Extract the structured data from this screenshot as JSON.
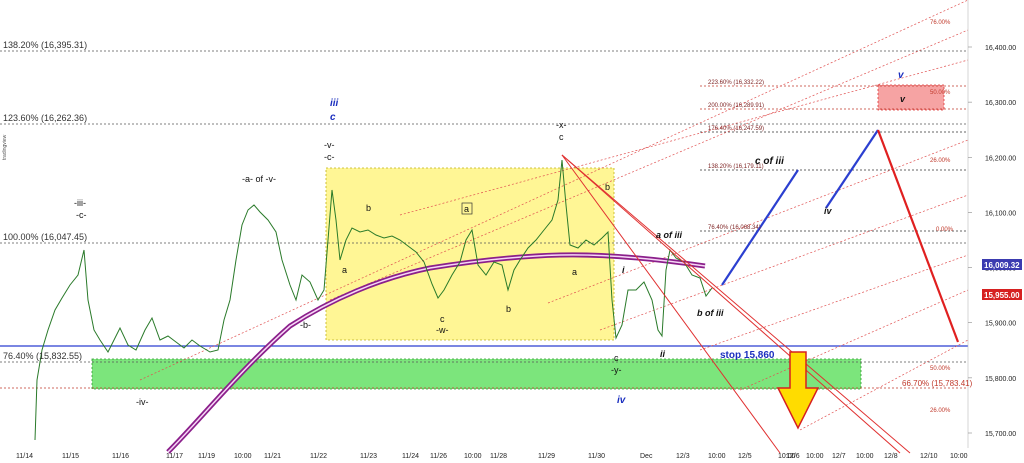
{
  "chart_data": {
    "type": "line",
    "instrument_type": "candlestick",
    "y_axis": {
      "position": "right",
      "ticks": [
        "16,400.00",
        "16,300.00",
        "16,200.00",
        "16,100.00",
        "16,000.00",
        "15,900.00",
        "15,800.00",
        "15,700.00"
      ],
      "tick_values": [
        16400,
        16300,
        16200,
        16100,
        16000,
        15900,
        15800,
        15700
      ],
      "ylim": [
        15650,
        16470
      ]
    },
    "x_axis": {
      "ticks": [
        "11/14",
        "11/15",
        "11/16",
        "11/17",
        "11/19",
        "10:00",
        "11/21",
        "11/22",
        "11/23",
        "11/24",
        "11/26",
        "10:00",
        "11/28",
        "11/29",
        "11/30",
        "Dec",
        "12/3",
        "10:00",
        "12/5",
        "10:00",
        "12/6",
        "10:00",
        "12/7",
        "10:00",
        "12/8",
        "12/10",
        "10:00"
      ]
    },
    "fib_levels_left": [
      {
        "label": "138.20% (16,395.31)",
        "value": 16395.31
      },
      {
        "label": "123.60% (16,262.36)",
        "value": 16262.36
      },
      {
        "label": "100.00% (16,047.45)",
        "value": 16047.45
      },
      {
        "label": "76.40% (15,832.55)",
        "value": 15832.55
      }
    ],
    "fib_levels_right": [
      {
        "label": "223.60% (16,332.22)",
        "value": 16332.22
      },
      {
        "label": "200.00% (16,289.91)",
        "value": 16289.91
      },
      {
        "label": "176.40% (16,247.59)",
        "value": 16247.59
      },
      {
        "label": "138.20% (16,179.11)",
        "value": 16179.11
      },
      {
        "label": "76.40% (16,068.34)",
        "value": 16068.34
      },
      {
        "label": "66.70% (15,783.41)",
        "value": 15783.41
      }
    ],
    "channel_labels": [
      "76.00%",
      "50.00%",
      "26.00%",
      "0.00%",
      "50.00%",
      "26.00%"
    ],
    "price_markers": [
      {
        "label": "16,009.32",
        "value": 16009.32,
        "color": "#3b3bb0"
      },
      {
        "label": "15,955.00",
        "value": 15955.0,
        "color": "#d62020"
      }
    ],
    "stop": {
      "label": "stop 15,860",
      "value": 15860
    },
    "wave_labels": {
      "iii_top": "iii",
      "c_top": "c",
      "v_c": "-v-",
      "c_c": "-c-",
      "a_of_v": "-a- of -v-",
      "iii_c1": "-iii-",
      "iii_c2": "-c-",
      "x": "-x-",
      "x_c": "c",
      "b_left": "b",
      "a_box_left": "a",
      "a_box_mid": "a",
      "b_box_mid": "b",
      "c_w": "c",
      "w": "-w-",
      "b_minus": "-b-",
      "iv_minus": "-iv-",
      "a_right": "a",
      "b_right": "b",
      "i_small": "i",
      "ii_small": "ii",
      "c_y": "c",
      "y": "-y-",
      "iv_blue": "iv",
      "a_of_iii": "a of iii",
      "b_of_iii": "b of iii",
      "c_of_iii": "c of iii",
      "iv_proj": "iv",
      "v_box": "v",
      "v_blue_top": "v"
    },
    "side_label": "tradingview"
  }
}
